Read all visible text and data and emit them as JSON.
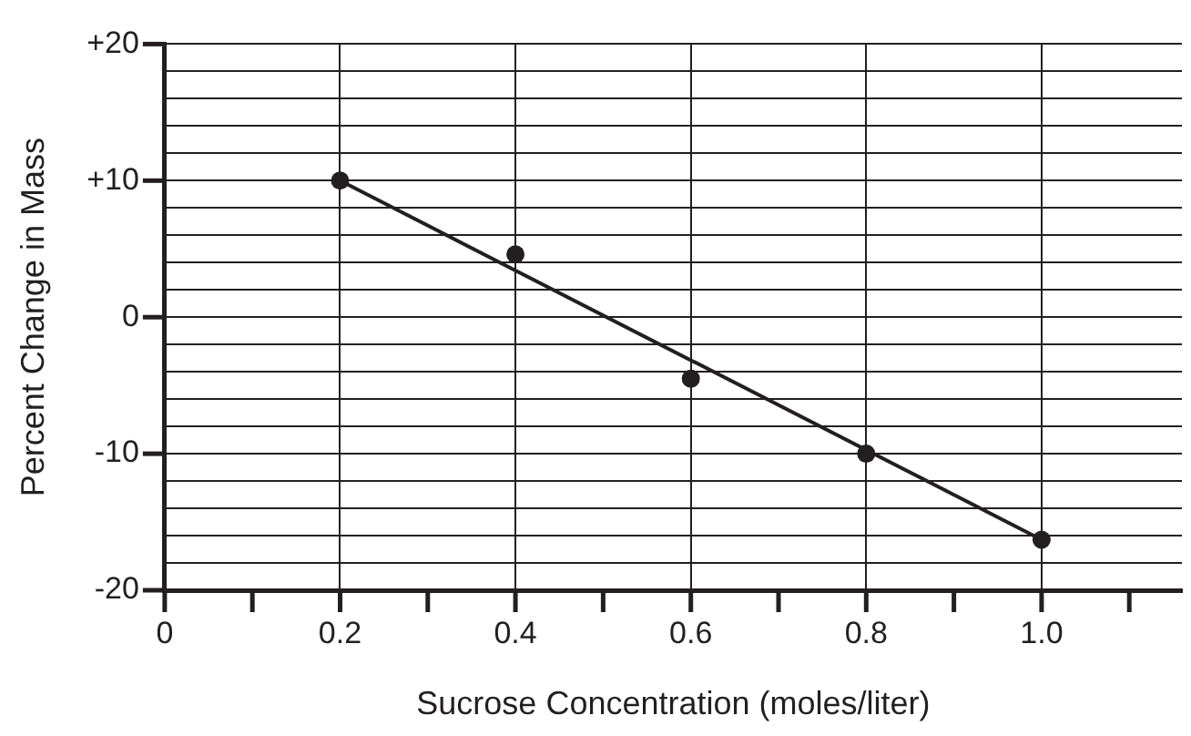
{
  "chart_data": {
    "type": "scatter",
    "xlabel": "Sucrose Concentration (moles/liter)",
    "ylabel": "Percent Change in Mass",
    "xlim": [
      0,
      1.16
    ],
    "ylim": [
      -20,
      20
    ],
    "xticks": [
      0,
      {
        "value": 0.1,
        "label": null
      },
      {
        "value": 0.2,
        "label": "0.2"
      },
      {
        "value": 0.3,
        "label": null
      },
      {
        "value": 0.4,
        "label": "0.4"
      },
      {
        "value": 0.5,
        "label": null
      },
      {
        "value": 0.6,
        "label": "0.6"
      },
      {
        "value": 0.7,
        "label": null
      },
      {
        "value": 0.8,
        "label": "0.8"
      },
      {
        "value": 0.9,
        "label": null
      },
      {
        "value": 1.0,
        "label": "1.0"
      },
      {
        "value": 1.1,
        "label": null
      }
    ],
    "yticks": [
      -20,
      {
        "value": -18,
        "label": null
      },
      {
        "value": -16,
        "label": null
      },
      {
        "value": -14,
        "label": null
      },
      {
        "value": -12,
        "label": null
      },
      -10,
      {
        "value": -8,
        "label": null
      },
      {
        "value": -6,
        "label": null
      },
      {
        "value": -4,
        "label": null
      },
      {
        "value": -2,
        "label": null
      },
      0,
      {
        "value": 2,
        "label": null
      },
      {
        "value": 4,
        "label": null
      },
      {
        "value": 6,
        "label": null
      },
      {
        "value": 8,
        "label": null
      },
      {
        "value": 10,
        "label": "+10"
      },
      {
        "value": 12,
        "label": null
      },
      {
        "value": 14,
        "label": null
      },
      {
        "value": 16,
        "label": null
      },
      {
        "value": 18,
        "label": null
      },
      {
        "value": 20,
        "label": "+20"
      }
    ],
    "grid": true,
    "marker": "circle",
    "series": [
      {
        "color": "#231f20",
        "x": [
          0.2,
          0.4,
          0.6,
          0.8,
          1.0
        ],
        "values": [
          10,
          4.6,
          -4.5,
          -10,
          -16.3
        ]
      },
      {
        "type": "line",
        "color": "#231f20",
        "marker": "none",
        "line_style": "solid",
        "x": [
          0.2,
          1.0
        ],
        "values": [
          10,
          -16.3
        ]
      }
    ]
  }
}
